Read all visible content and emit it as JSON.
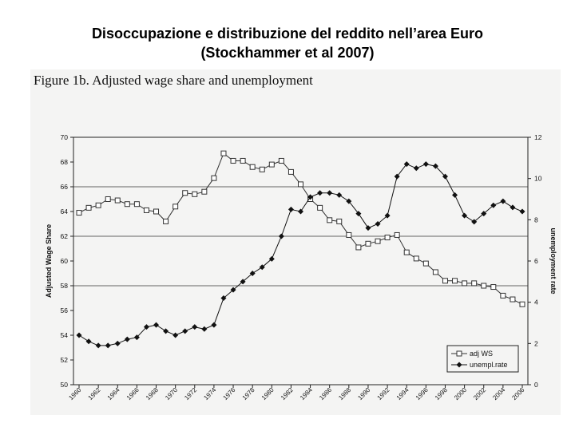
{
  "slide": {
    "title_line1": "Disoccupazione e distribuzione del reddito nell’area Euro",
    "title_line2": "(Stockhammer et al 2007)"
  },
  "chart_data": {
    "type": "line",
    "title": "Figure 1b. Adjusted wage share and unemployment",
    "ylabel": "Adjusted Wage Share",
    "y2label": "unemployment rate",
    "ylim": [
      50,
      70
    ],
    "y2lim": [
      0,
      12
    ],
    "yticks": [
      50,
      52,
      54,
      56,
      58,
      60,
      62,
      64,
      66,
      68,
      70
    ],
    "y2ticks": [
      0,
      2,
      4,
      6,
      8,
      10,
      12
    ],
    "xticks": [
      "1960",
      "1962",
      "1964",
      "1966",
      "1968",
      "1970",
      "1972",
      "1974",
      "1976",
      "1978",
      "1980",
      "1982",
      "1984",
      "1986",
      "1988",
      "1990",
      "1992",
      "1994",
      "1996",
      "1998",
      "2000",
      "2002",
      "2004",
      "2006"
    ],
    "gridlines_y": [
      58,
      62,
      66
    ],
    "legend_position": "bottom-right",
    "series": [
      {
        "name": "adj WS",
        "axis": "left",
        "marker": "open-square",
        "x": [
          1960,
          1961,
          1962,
          1963,
          1964,
          1965,
          1966,
          1967,
          1968,
          1969,
          1970,
          1971,
          1972,
          1973,
          1974,
          1975,
          1976,
          1977,
          1978,
          1979,
          1980,
          1981,
          1982,
          1983,
          1984,
          1985,
          1986,
          1987,
          1988,
          1989,
          1990,
          1991,
          1992,
          1993,
          1994,
          1995,
          1996,
          1997,
          1998,
          1999,
          2000,
          2001,
          2002,
          2003,
          2004,
          2005,
          2006
        ],
        "values": [
          63.9,
          64.3,
          64.5,
          65.0,
          64.9,
          64.6,
          64.6,
          64.1,
          64.0,
          63.2,
          64.4,
          65.5,
          65.4,
          65.6,
          66.7,
          68.7,
          68.1,
          68.1,
          67.6,
          67.4,
          67.8,
          68.1,
          67.2,
          66.2,
          65.0,
          64.3,
          63.3,
          63.2,
          62.1,
          61.1,
          61.4,
          61.6,
          61.9,
          62.1,
          60.7,
          60.2,
          59.8,
          59.1,
          58.4,
          58.4,
          58.2,
          58.2,
          58.0,
          57.9,
          57.2,
          56.9,
          56.5
        ]
      },
      {
        "name": "unempl.rate",
        "axis": "right",
        "marker": "filled-diamond",
        "x": [
          1960,
          1961,
          1962,
          1963,
          1964,
          1965,
          1966,
          1967,
          1968,
          1969,
          1970,
          1971,
          1972,
          1973,
          1974,
          1975,
          1976,
          1977,
          1978,
          1979,
          1980,
          1981,
          1982,
          1983,
          1984,
          1985,
          1986,
          1987,
          1988,
          1989,
          1990,
          1991,
          1992,
          1993,
          1994,
          1995,
          1996,
          1997,
          1998,
          1999,
          2000,
          2001,
          2002,
          2003,
          2004,
          2005,
          2006
        ],
        "values": [
          2.4,
          2.1,
          1.9,
          1.9,
          2.0,
          2.2,
          2.3,
          2.8,
          2.9,
          2.6,
          2.4,
          2.6,
          2.8,
          2.7,
          2.9,
          4.2,
          4.6,
          5.0,
          5.4,
          5.7,
          6.1,
          7.2,
          8.5,
          8.4,
          9.1,
          9.3,
          9.3,
          9.2,
          8.9,
          8.3,
          7.6,
          7.8,
          8.2,
          10.1,
          10.7,
          10.5,
          10.7,
          10.6,
          10.1,
          9.2,
          8.2,
          7.9,
          8.3,
          8.7,
          8.9,
          8.6,
          8.4
        ]
      }
    ]
  }
}
